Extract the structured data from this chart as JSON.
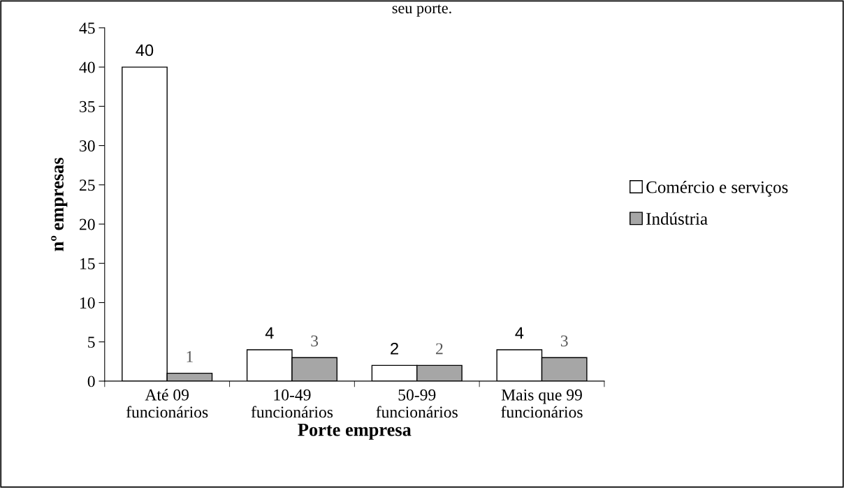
{
  "chart_data": {
    "type": "bar",
    "title": "seu porte.",
    "xlabel": "Porte empresa",
    "ylabel": "nº empresas",
    "categories": [
      "Até 09\nfuncionários",
      "10-49\nfuncionários",
      "50-99\nfuncionários",
      "Mais que 99\nfuncionários"
    ],
    "series": [
      {
        "name": "Comércio e serviços",
        "color": "#ffffff",
        "values": [
          40,
          4,
          2,
          4
        ]
      },
      {
        "name": "Indústria",
        "color": "#a6a6a6",
        "values": [
          1,
          3,
          2,
          3
        ]
      }
    ],
    "ylim": [
      0,
      45
    ],
    "yticks": [
      0,
      5,
      10,
      15,
      20,
      25,
      30,
      35,
      40,
      45
    ],
    "data_labels": true,
    "legend": "right",
    "grid": false
  }
}
